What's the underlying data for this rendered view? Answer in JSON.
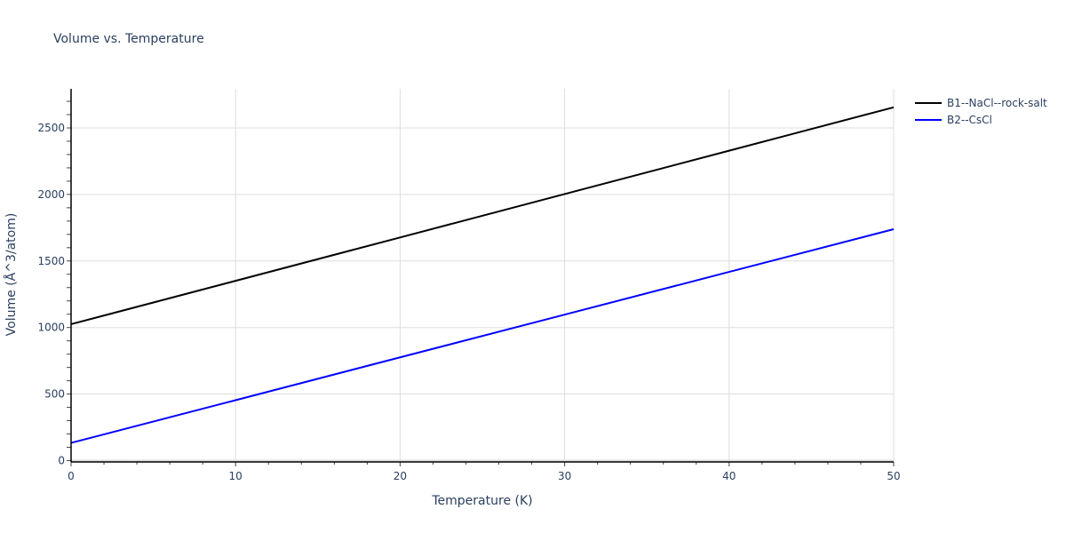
{
  "title": "Volume vs. Temperature",
  "chart_data": {
    "type": "line",
    "title": "Volume vs. Temperature",
    "xlabel": "Temperature (K)",
    "ylabel": "Volume (Å^3/atom)",
    "xlim": [
      0,
      50
    ],
    "ylim": [
      0,
      2800
    ],
    "x_ticks": [
      0,
      10,
      20,
      30,
      40,
      50
    ],
    "y_ticks": [
      0,
      500,
      1000,
      1500,
      2000,
      2500
    ],
    "grid": true,
    "legend_position": "top-right outside",
    "x": [
      0,
      10,
      20,
      30,
      40,
      50
    ],
    "series": [
      {
        "name": "B1--NaCl--rock-salt",
        "color": "#000000",
        "values": [
          1025,
          1351,
          1677,
          2003,
          2329,
          2655
        ]
      },
      {
        "name": "B2--CsCl",
        "color": "#0000ff",
        "values": [
          133,
          454,
          776,
          1097,
          1418,
          1739
        ]
      }
    ]
  },
  "legend": [
    {
      "label": "B1--NaCl--rock-salt",
      "color": "#000000"
    },
    {
      "label": "B2--CsCl",
      "color": "#0000ff"
    }
  ]
}
